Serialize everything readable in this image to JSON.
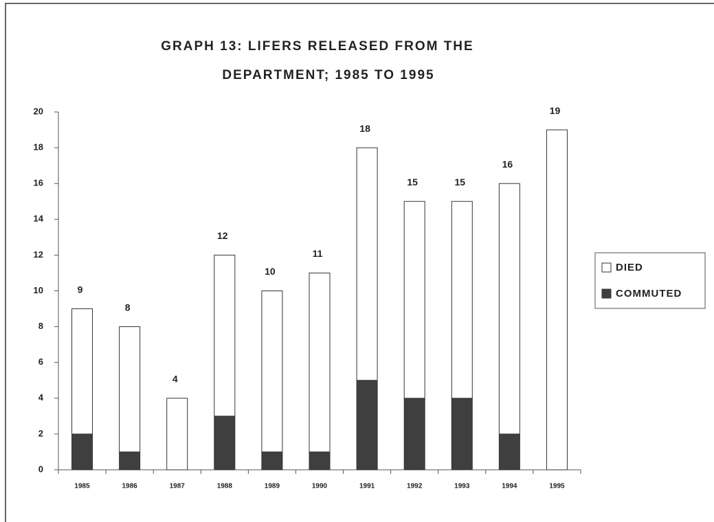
{
  "chart_data": {
    "type": "stacked-bar",
    "title": [
      "GRAPH 13: LIFERS RELEASED FROM THE",
      "DEPARTMENT; 1985 TO 1995"
    ],
    "categories": [
      "1985",
      "1986",
      "1987",
      "1988",
      "1989",
      "1990",
      "1991",
      "1992",
      "1993",
      "1994",
      "1995"
    ],
    "series": [
      {
        "name": "COMMUTED",
        "color": "#3f3f3f",
        "values": [
          2,
          1,
          0,
          3,
          1,
          1,
          5,
          4,
          4,
          2,
          0
        ]
      },
      {
        "name": "DIED",
        "color": "#ffffff",
        "values": [
          7,
          7,
          4,
          9,
          9,
          10,
          13,
          11,
          11,
          14,
          19
        ]
      }
    ],
    "totals": [
      9,
      8,
      4,
      12,
      10,
      11,
      18,
      15,
      15,
      16,
      19
    ],
    "ylim": [
      0,
      20
    ],
    "yticks": [
      0,
      2,
      4,
      6,
      8,
      10,
      12,
      14,
      16,
      18,
      20
    ],
    "legend": "right"
  }
}
